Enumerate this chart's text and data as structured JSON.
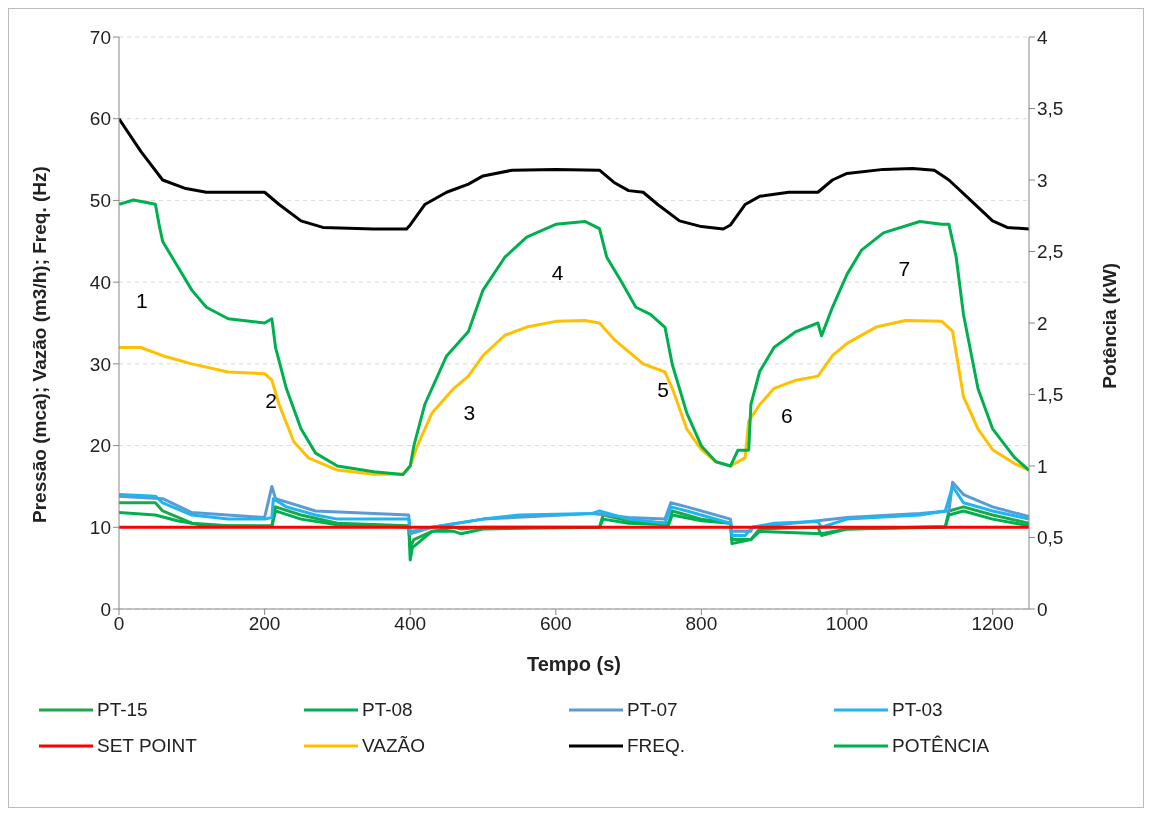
{
  "chart_data": {
    "type": "line",
    "xlabel": "Tempo (s)",
    "ylabel": "Pressão (mca); Vazão (m3/h); Freq. (Hz)",
    "y2label": "Potência (kW)",
    "xlim": [
      0,
      1250
    ],
    "xticks": [
      0,
      200,
      400,
      600,
      800,
      1000,
      1200
    ],
    "ylim": [
      0,
      70
    ],
    "yticks": [
      0,
      10,
      20,
      30,
      40,
      50,
      60,
      70
    ],
    "y2lim": [
      0,
      4
    ],
    "y2ticks": [
      0,
      {
        "value": 0.5,
        "label": "0,5"
      },
      1,
      {
        "value": 1.5,
        "label": "1,5"
      },
      2,
      {
        "value": 2.5,
        "label": "2,5"
      },
      3,
      {
        "value": 3.5,
        "label": "3,5"
      },
      4
    ],
    "grid": "y",
    "legend": "bottom",
    "marker": "none",
    "line_style": "solid",
    "annotations": [
      "1",
      "2",
      "3",
      "4",
      "5",
      "6",
      "7"
    ],
    "series": [
      {
        "name": "PT-15",
        "color": "#1aa84a",
        "x": [
          0,
          50,
          60,
          100,
          150,
          210,
          215,
          250,
          300,
          398,
          400,
          405,
          430,
          460,
          470,
          500,
          660,
          665,
          700,
          755,
          760,
          800,
          840,
          842,
          868,
          880,
          960,
          965,
          1000,
          1135,
          1140,
          1160,
          1200,
          1250
        ],
        "values": [
          13,
          13,
          12,
          10.5,
          10.2,
          10.2,
          12.5,
          11.5,
          10.5,
          10.2,
          7.5,
          8.5,
          9.5,
          10,
          9.8,
          10,
          10,
          11.5,
          10.8,
          10.5,
          12,
          11,
          10.5,
          8.5,
          8.5,
          9.8,
          10,
          9,
          9.8,
          10,
          12,
          12.5,
          11.5,
          10.5
        ]
      },
      {
        "name": "PT-08",
        "color": "#00b050",
        "x": [
          0,
          50,
          80,
          120,
          210,
          215,
          250,
          300,
          398,
          400,
          403,
          430,
          460,
          470,
          500,
          660,
          665,
          700,
          755,
          760,
          800,
          840,
          842,
          868,
          880,
          965,
          1000,
          1135,
          1140,
          1160,
          1200,
          1250
        ],
        "values": [
          11.8,
          11.5,
          10.8,
          10.2,
          10.1,
          12,
          11,
          10.3,
          10,
          6,
          7.5,
          9.5,
          9.5,
          9.2,
          9.8,
          10,
          11,
          10.5,
          10.3,
          11.5,
          10.8,
          10.5,
          8,
          8.5,
          9.5,
          9.2,
          9.8,
          10.1,
          11.5,
          12,
          11,
          10.2
        ]
      },
      {
        "name": "PT-07",
        "color": "#5b9bd5",
        "x": [
          0,
          60,
          100,
          200,
          210,
          215,
          270,
          398,
          400,
          430,
          500,
          650,
          700,
          750,
          758,
          780,
          840,
          842,
          868,
          870,
          960,
          1000,
          1100,
          1140,
          1145,
          1160,
          1200,
          1250
        ],
        "values": [
          13.8,
          13.5,
          11.8,
          11.2,
          15,
          13.5,
          12,
          11.5,
          9.2,
          10,
          11,
          11.7,
          11.2,
          11,
          13,
          12.5,
          11,
          9.5,
          9.5,
          10,
          10.8,
          11.2,
          11.7,
          12,
          15.5,
          14,
          12.5,
          11.3
        ]
      },
      {
        "name": "PT-03",
        "color": "#1fb5f0",
        "x": [
          0,
          50,
          60,
          100,
          150,
          200,
          210,
          212,
          230,
          270,
          300,
          398,
          400,
          430,
          500,
          550,
          650,
          660,
          700,
          750,
          758,
          780,
          840,
          842,
          860,
          870,
          900,
          960,
          965,
          1000,
          1100,
          1135,
          1145,
          1160,
          1200,
          1250
        ],
        "values": [
          14,
          13.8,
          13,
          11.5,
          11,
          11,
          11.2,
          13.5,
          12.5,
          11.5,
          11,
          11,
          9.5,
          10,
          11,
          11.5,
          11.7,
          12,
          11,
          10.5,
          12.5,
          12,
          10.5,
          9,
          9,
          10,
          10.5,
          10.7,
          10,
          11,
          11.5,
          12,
          15,
          13,
          12,
          11
        ]
      },
      {
        "name": "SET POINT",
        "color": "#ff0000",
        "x": [
          0,
          1250
        ],
        "values": [
          10,
          10
        ]
      },
      {
        "name": "VAZÃO",
        "color": "#ffc000",
        "x": [
          0,
          30,
          60,
          100,
          150,
          200,
          210,
          220,
          240,
          260,
          300,
          350,
          390,
          400,
          410,
          430,
          460,
          480,
          500,
          530,
          560,
          600,
          640,
          660,
          680,
          700,
          720,
          750,
          760,
          780,
          800,
          820,
          840,
          850,
          860,
          865,
          880,
          900,
          930,
          960,
          980,
          1000,
          1040,
          1080,
          1130,
          1145,
          1160,
          1180,
          1200,
          1230,
          1250
        ],
        "values": [
          32,
          32,
          31,
          30,
          29,
          28.8,
          28,
          25,
          20.5,
          18.5,
          17,
          16.5,
          16.5,
          17.5,
          20,
          24,
          27,
          28.5,
          31,
          33.5,
          34.5,
          35.2,
          35.3,
          35,
          33,
          31.5,
          30,
          29,
          27,
          22,
          19.5,
          18,
          17.5,
          18,
          18.5,
          23,
          25,
          27,
          28,
          28.5,
          31,
          32.5,
          34.5,
          35.3,
          35.2,
          34,
          26,
          22,
          19.5,
          17.8,
          17
        ]
      },
      {
        "name": "FREQ.",
        "color": "#000000",
        "x": [
          0,
          30,
          60,
          90,
          120,
          200,
          220,
          250,
          280,
          350,
          395,
          400,
          420,
          450,
          480,
          500,
          540,
          600,
          660,
          680,
          700,
          720,
          740,
          770,
          800,
          830,
          840,
          860,
          880,
          920,
          960,
          980,
          1000,
          1050,
          1090,
          1120,
          1140,
          1170,
          1200,
          1220,
          1250
        ],
        "values": [
          60,
          56,
          52.5,
          51.5,
          51,
          51,
          49.5,
          47.5,
          46.7,
          46.5,
          46.5,
          47,
          49.5,
          51,
          52,
          53,
          53.7,
          53.8,
          53.7,
          52.2,
          51.2,
          51,
          49.5,
          47.5,
          46.8,
          46.5,
          47,
          49.5,
          50.5,
          51,
          51,
          52.5,
          53.3,
          53.8,
          53.9,
          53.7,
          52.5,
          50,
          47.5,
          46.7,
          46.5
        ]
      },
      {
        "name": "POTÊNCIA",
        "color": "#00b050",
        "axis": "y2",
        "x": [
          0,
          20,
          50,
          55,
          60,
          80,
          100,
          120,
          150,
          200,
          210,
          215,
          230,
          250,
          270,
          300,
          350,
          390,
          400,
          405,
          420,
          450,
          480,
          500,
          530,
          560,
          600,
          640,
          660,
          670,
          690,
          710,
          730,
          750,
          760,
          780,
          800,
          820,
          840,
          850,
          865,
          868,
          880,
          900,
          930,
          960,
          965,
          980,
          1000,
          1020,
          1050,
          1100,
          1130,
          1140,
          1150,
          1160,
          1180,
          1200,
          1230,
          1250
        ],
        "values": [
          2.83,
          2.86,
          2.83,
          2.69,
          2.57,
          2.4,
          2.23,
          2.11,
          2.03,
          2,
          2.03,
          1.83,
          1.54,
          1.26,
          1.09,
          1,
          0.96,
          0.94,
          1,
          1.14,
          1.43,
          1.77,
          1.94,
          2.23,
          2.46,
          2.6,
          2.69,
          2.71,
          2.66,
          2.46,
          2.29,
          2.11,
          2.06,
          1.97,
          1.71,
          1.37,
          1.14,
          1.03,
          1,
          1.11,
          1.11,
          1.43,
          1.66,
          1.83,
          1.94,
          2,
          1.91,
          2.11,
          2.34,
          2.51,
          2.63,
          2.71,
          2.69,
          2.69,
          2.46,
          2.06,
          1.54,
          1.26,
          1.06,
          0.97
        ]
      }
    ]
  }
}
